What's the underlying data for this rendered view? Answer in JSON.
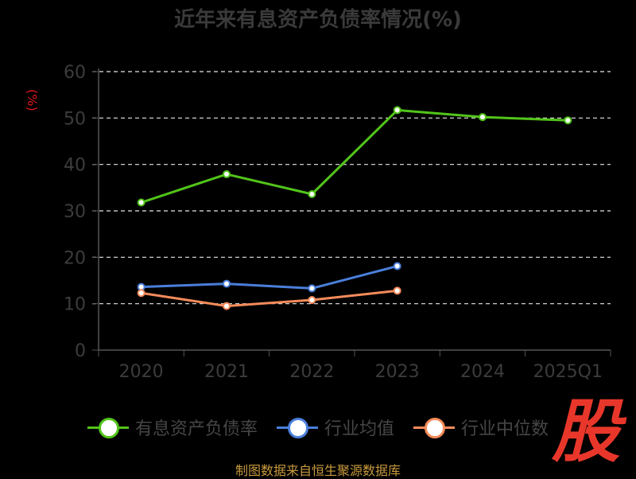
{
  "title": "近年来有息资产负债率情况(%)",
  "unit_label": "(%)",
  "source": "制图数据来自恒生聚源数据库",
  "badge": "股",
  "legend": [
    {
      "label": "有息资产负债率",
      "color": "#52c41a"
    },
    {
      "label": "行业均值",
      "color": "#4a7fdb"
    },
    {
      "label": "行业中位数",
      "color": "#f58b5a"
    }
  ],
  "chart_data": {
    "type": "line",
    "categories": [
      "2020",
      "2021",
      "2022",
      "2023",
      "2024",
      "2025Q1"
    ],
    "ylim": [
      0,
      60
    ],
    "yticks": [
      0,
      10,
      20,
      30,
      40,
      50,
      60
    ],
    "grid": true,
    "legend_position": "bottom",
    "series": [
      {
        "name": "有息资产负债率",
        "color": "#52c41a",
        "values": [
          31.8,
          37.9,
          33.6,
          51.7,
          50.2,
          49.5
        ]
      },
      {
        "name": "行业均值",
        "color": "#4a7fdb",
        "values": [
          13.6,
          14.3,
          13.3,
          18.1,
          null,
          null
        ]
      },
      {
        "name": "行业中位数",
        "color": "#f58b5a",
        "values": [
          12.3,
          9.5,
          10.8,
          12.8,
          null,
          null
        ]
      }
    ]
  }
}
